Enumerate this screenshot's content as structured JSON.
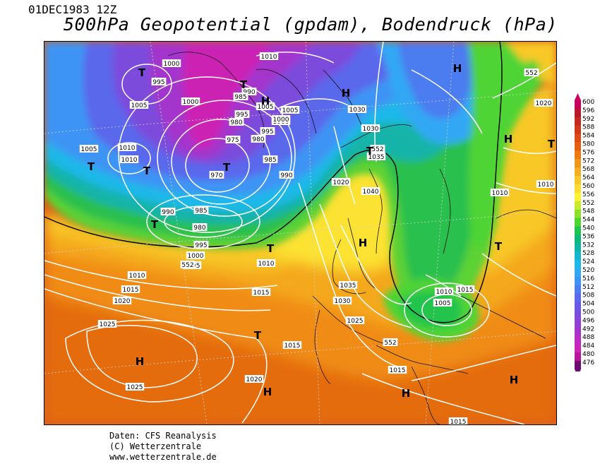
{
  "header": {
    "date": "01DEC1983 12Z",
    "title": "500hPa Geopotential (gpdam), Bodendruck (hPa)"
  },
  "legend": {
    "levels": [
      "600",
      "596",
      "592",
      "588",
      "584",
      "580",
      "576",
      "572",
      "568",
      "564",
      "560",
      "556",
      "552",
      "548",
      "544",
      "540",
      "536",
      "532",
      "528",
      "524",
      "520",
      "516",
      "512",
      "508",
      "504",
      "500",
      "496",
      "492",
      "488",
      "484",
      "480",
      "476"
    ],
    "colors": [
      "#c8005a",
      "#b81a2a",
      "#c42a20",
      "#d03a18",
      "#dc4c14",
      "#e46010",
      "#ec7a10",
      "#f0961a",
      "#f4ac22",
      "#f8c82a",
      "#fcdc30",
      "#fff034",
      "#c8ec2c",
      "#8ce02a",
      "#50d434",
      "#20c44c",
      "#10b878",
      "#10b4a4",
      "#14b8cc",
      "#1cb8e8",
      "#30a8f4",
      "#3c94f4",
      "#4c7cf0",
      "#5a68ec",
      "#6a58e4",
      "#7c4cdc",
      "#9040d4",
      "#a434cc",
      "#bc2cc4",
      "#cc24b4",
      "#b81898",
      "#6e0a70"
    ]
  },
  "map": {
    "isobar_labels": [
      {
        "text": "1000"
      },
      {
        "text": "995"
      },
      {
        "text": "1005"
      },
      {
        "text": "1000"
      },
      {
        "text": "990"
      },
      {
        "text": "985"
      },
      {
        "text": "995"
      },
      {
        "text": "980"
      },
      {
        "text": "975"
      },
      {
        "text": "970"
      },
      {
        "text": "1010"
      },
      {
        "text": "1005"
      },
      {
        "text": "1000"
      },
      {
        "text": "995"
      },
      {
        "text": "980"
      },
      {
        "text": "985"
      },
      {
        "text": "990"
      },
      {
        "text": "1010"
      },
      {
        "text": "1010"
      },
      {
        "text": "1005"
      },
      {
        "text": "990"
      },
      {
        "text": "985"
      },
      {
        "text": "980"
      },
      {
        "text": "995"
      },
      {
        "text": "1000"
      },
      {
        "text": "1005"
      },
      {
        "text": "1010"
      },
      {
        "text": "1015"
      },
      {
        "text": "1020"
      },
      {
        "text": "1025"
      },
      {
        "text": "1025"
      },
      {
        "text": "1020"
      },
      {
        "text": "1020"
      },
      {
        "text": "1015"
      },
      {
        "text": "1015"
      },
      {
        "text": "1010"
      },
      {
        "text": "1030"
      },
      {
        "text": "1030"
      },
      {
        "text": "1035"
      },
      {
        "text": "1040"
      },
      {
        "text": "1035"
      },
      {
        "text": "1030"
      },
      {
        "text": "1025"
      },
      {
        "text": "1010"
      },
      {
        "text": "1005"
      },
      {
        "text": "1015"
      },
      {
        "text": "1015"
      },
      {
        "text": "1015"
      },
      {
        "text": "1010"
      },
      {
        "text": "1010"
      },
      {
        "text": "1020"
      },
      {
        "text": "1005"
      },
      {
        "text": "1000"
      }
    ],
    "height_labels": [
      {
        "text": "552"
      },
      {
        "text": "552"
      },
      {
        "text": "552"
      },
      {
        "text": "552"
      }
    ],
    "systems": [
      {
        "text": "T"
      },
      {
        "text": "T"
      },
      {
        "text": "H"
      },
      {
        "text": "H"
      },
      {
        "text": "T"
      },
      {
        "text": "T"
      },
      {
        "text": "T"
      },
      {
        "text": "T"
      },
      {
        "text": "T"
      },
      {
        "text": "T"
      },
      {
        "text": "H"
      },
      {
        "text": "T"
      },
      {
        "text": "H"
      },
      {
        "text": "H"
      },
      {
        "text": "T"
      },
      {
        "text": "H"
      },
      {
        "text": "H"
      },
      {
        "text": "H"
      },
      {
        "text": "T"
      },
      {
        "text": "H"
      }
    ]
  },
  "credits": {
    "line1": "Daten: CFS Reanalysis",
    "line2": "(C) Wetterzentrale",
    "line3": "www.wetterzentrale.de"
  }
}
